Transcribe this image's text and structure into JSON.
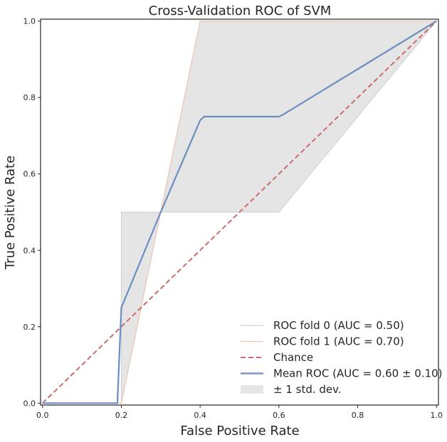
{
  "chart_data": {
    "type": "line",
    "title": "Cross-Validation ROC of SVM",
    "xlabel": "False Positive Rate",
    "ylabel": "True Positive Rate",
    "xlim": [
      -0.005,
      1.005
    ],
    "ylim": [
      -0.005,
      1.005
    ],
    "xticks": [
      0.0,
      0.2,
      0.4,
      0.6,
      0.8,
      1.0
    ],
    "yticks": [
      0.0,
      0.2,
      0.4,
      0.6,
      0.8,
      1.0
    ],
    "xtick_labels": [
      "0.0",
      "0.2",
      "0.4",
      "0.6",
      "0.8",
      "1.0"
    ],
    "ytick_labels": [
      "0.0",
      "0.2",
      "0.4",
      "0.6",
      "0.8",
      "1.0"
    ],
    "legend_position": "lower-right",
    "series": [
      {
        "name": "ROC fold 0 (AUC = 0.50)",
        "style": "solid",
        "color": "#d0d4dc",
        "x": [
          0.0,
          0.2,
          0.2,
          0.6,
          1.0
        ],
        "y": [
          0.0,
          0.0,
          0.5,
          0.5,
          1.0
        ]
      },
      {
        "name": "ROC fold 1 (AUC = 0.70)",
        "style": "solid",
        "color": "#eac3b1",
        "x": [
          0.0,
          0.2,
          0.4,
          1.0
        ],
        "y": [
          0.0,
          0.0,
          1.0,
          1.0
        ]
      },
      {
        "name": "Chance",
        "style": "dashed",
        "color": "#cc6b6b",
        "x": [
          0.0,
          1.0
        ],
        "y": [
          0.0,
          1.0
        ]
      },
      {
        "name": "Mean ROC (AUC = 0.60 ± 0.10)",
        "style": "solid",
        "color": "#6c8ebf",
        "x": [
          0.0,
          0.19,
          0.2,
          0.3,
          0.4,
          0.41,
          0.6,
          0.61,
          1.0
        ],
        "y": [
          0.0,
          0.0,
          0.25,
          0.5,
          0.74,
          0.75,
          0.75,
          0.755,
          1.0
        ]
      }
    ],
    "band": {
      "name": "± 1 std. dev.",
      "color": "#dcdcdc",
      "upper": {
        "x": [
          0.0,
          0.2,
          0.2,
          0.3,
          0.4,
          1.0
        ],
        "y": [
          0.0,
          0.0,
          0.5,
          0.5,
          1.0,
          1.0
        ]
      },
      "lower": {
        "x": [
          0.0,
          0.2,
          0.3,
          0.6,
          1.0
        ],
        "y": [
          0.0,
          0.0,
          0.5,
          0.5,
          1.0
        ]
      }
    }
  }
}
